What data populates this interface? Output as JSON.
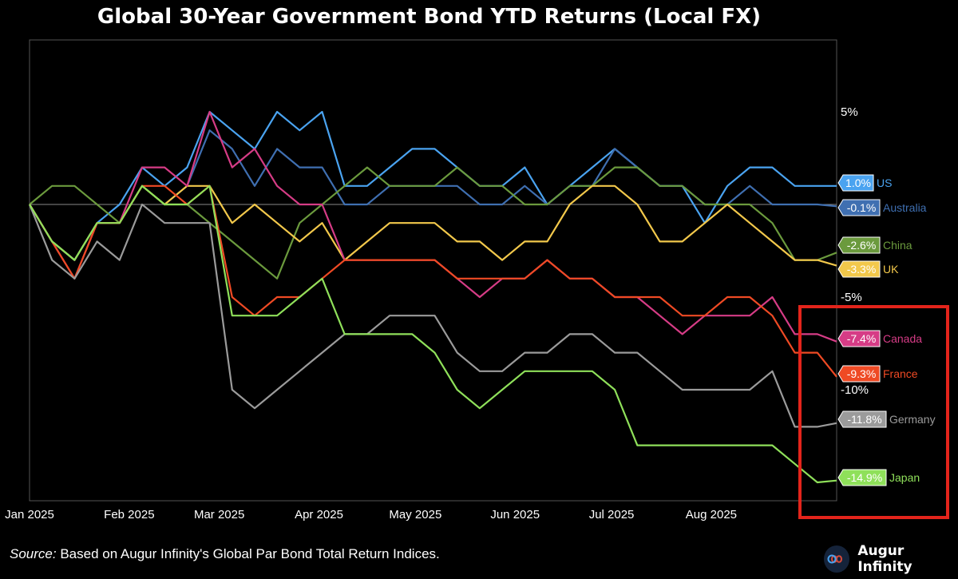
{
  "chart_data": {
    "type": "line",
    "title": "Global 30-Year Government Bond YTD Returns (Local FX)",
    "x_ticks": [
      "Jan 2025",
      "Feb 2025",
      "Mar 2025",
      "Apr 2025",
      "May 2025",
      "Jun 2025",
      "Jul 2025",
      "Aug 2025"
    ],
    "y_ticks": [
      "5%",
      "-5%",
      "-10%"
    ],
    "ylim": [
      -16,
      9
    ],
    "x_dates": [
      "2025-01-01",
      "2025-01-08",
      "2025-01-15",
      "2025-01-22",
      "2025-01-29",
      "2025-02-05",
      "2025-02-12",
      "2025-02-19",
      "2025-02-26",
      "2025-03-05",
      "2025-03-12",
      "2025-03-19",
      "2025-03-26",
      "2025-04-02",
      "2025-04-09",
      "2025-04-16",
      "2025-04-23",
      "2025-04-30",
      "2025-05-07",
      "2025-05-14",
      "2025-05-21",
      "2025-05-28",
      "2025-06-04",
      "2025-06-11",
      "2025-06-18",
      "2025-06-25",
      "2025-07-02",
      "2025-07-09",
      "2025-07-16",
      "2025-07-23",
      "2025-07-30",
      "2025-08-06",
      "2025-08-13",
      "2025-08-20",
      "2025-08-27",
      "2025-09-03",
      "2025-09-09"
    ],
    "series": [
      {
        "name": "US",
        "color": "#4aa3f0",
        "end_label": "1.0%",
        "values": [
          0,
          -2,
          -3,
          -1,
          0,
          2,
          1,
          2,
          5,
          4,
          3,
          5,
          4,
          5,
          1,
          1,
          2,
          3,
          3,
          2,
          1,
          1,
          2,
          0,
          1,
          2,
          3,
          2,
          1,
          1,
          -1,
          1,
          2,
          2,
          1,
          1,
          1.0
        ]
      },
      {
        "name": "Australia",
        "color": "#3f6fb1",
        "end_label": "-0.1%",
        "values": [
          0,
          -2,
          -3,
          -1,
          -1,
          1,
          0,
          1,
          4,
          3,
          1,
          3,
          2,
          2,
          0,
          0,
          1,
          1,
          1,
          1,
          0,
          0,
          1,
          0,
          1,
          1,
          3,
          2,
          1,
          1,
          0,
          0,
          1,
          0,
          0,
          0,
          -0.1
        ]
      },
      {
        "name": "China",
        "color": "#6b9a3d",
        "end_label": "-2.6%",
        "values": [
          0,
          1,
          1,
          0,
          -1,
          1,
          0,
          0,
          -1,
          -2,
          -3,
          -4,
          -1,
          0,
          1,
          2,
          1,
          1,
          1,
          2,
          1,
          1,
          0,
          0,
          1,
          1,
          2,
          2,
          1,
          1,
          0,
          0,
          0,
          -1,
          -3,
          -3,
          -2.6
        ]
      },
      {
        "name": "UK",
        "color": "#f2c84b",
        "end_label": "-3.3%",
        "values": [
          0,
          -2,
          -3,
          -1,
          -1,
          1,
          0,
          1,
          1,
          -1,
          0,
          -1,
          -2,
          -1,
          -3,
          -2,
          -1,
          -1,
          -1,
          -2,
          -2,
          -3,
          -2,
          -2,
          0,
          1,
          1,
          0,
          -2,
          -2,
          -1,
          0,
          -1,
          -2,
          -3,
          -3,
          -3.3
        ]
      },
      {
        "name": "Canada",
        "color": "#d63c86",
        "end_label": "-7.4%",
        "values": [
          0,
          -2,
          -4,
          -1,
          -1,
          2,
          2,
          1,
          5,
          2,
          3,
          1,
          0,
          0,
          -3,
          -3,
          -3,
          -3,
          -3,
          -4,
          -5,
          -4,
          -4,
          -3,
          -4,
          -4,
          -5,
          -5,
          -6,
          -7,
          -6,
          -6,
          -6,
          -5,
          -7,
          -7,
          -7.4
        ]
      },
      {
        "name": "France",
        "color": "#ef4a24",
        "end_label": "-9.3%",
        "values": [
          0,
          -2,
          -4,
          -1,
          -1,
          1,
          1,
          0,
          1,
          -5,
          -6,
          -5,
          -5,
          -4,
          -3,
          -3,
          -3,
          -3,
          -3,
          -4,
          -4,
          -4,
          -4,
          -3,
          -4,
          -4,
          -5,
          -5,
          -5,
          -6,
          -6,
          -5,
          -5,
          -6,
          -8,
          -8,
          -9.3
        ]
      },
      {
        "name": "Germany",
        "color": "#9b9b9b",
        "end_label": "-11.8%",
        "values": [
          0,
          -3,
          -4,
          -2,
          -3,
          0,
          -1,
          -1,
          -1,
          -10,
          -11,
          -10,
          -9,
          -8,
          -7,
          -7,
          -6,
          -6,
          -6,
          -8,
          -9,
          -9,
          -8,
          -8,
          -7,
          -7,
          -8,
          -8,
          -9,
          -10,
          -10,
          -10,
          -10,
          -9,
          -12,
          -12,
          -11.8
        ]
      },
      {
        "name": "Japan",
        "color": "#8fe05a",
        "end_label": "-14.9%",
        "values": [
          0,
          -2,
          -3,
          -1,
          -1,
          1,
          0,
          0,
          1,
          -6,
          -6,
          -6,
          -5,
          -4,
          -7,
          -7,
          -7,
          -7,
          -8,
          -10,
          -11,
          -10,
          -9,
          -9,
          -9,
          -9,
          -10,
          -13,
          -13,
          -13,
          -13,
          -13,
          -13,
          -13,
          -14,
          -15,
          -14.9
        ]
      }
    ]
  },
  "source": {
    "prefix": "Source:",
    "text": " Based on Augur Infinity's Global Par Bond Total Return Indices."
  },
  "brand": {
    "name": "Augur Infinity"
  }
}
